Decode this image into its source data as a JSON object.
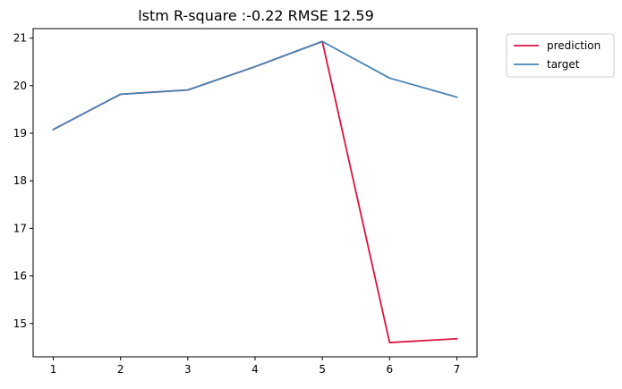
{
  "chart_data": {
    "type": "line",
    "title": "lstm R-square :-0.22 RMSE 12.59",
    "xlabel": "",
    "ylabel": "",
    "x": [
      1,
      2,
      3,
      4,
      5,
      6,
      7
    ],
    "xlim": [
      0.7,
      7.3
    ],
    "ylim": [
      14.3,
      21.2
    ],
    "xticks": [
      "1",
      "2",
      "3",
      "4",
      "5",
      "6",
      "7"
    ],
    "yticks": [
      "15",
      "16",
      "17",
      "18",
      "19",
      "20",
      "21"
    ],
    "grid": false,
    "legend_position": "outside upper right",
    "series": [
      {
        "name": "prediction",
        "color": "#dc143c",
        "values": [
          19.08,
          19.82,
          19.91,
          20.4,
          20.93,
          14.6,
          14.68
        ]
      },
      {
        "name": "target",
        "color": "#4682b4",
        "values": [
          19.08,
          19.82,
          19.91,
          20.4,
          20.93,
          20.16,
          19.76
        ]
      }
    ]
  }
}
